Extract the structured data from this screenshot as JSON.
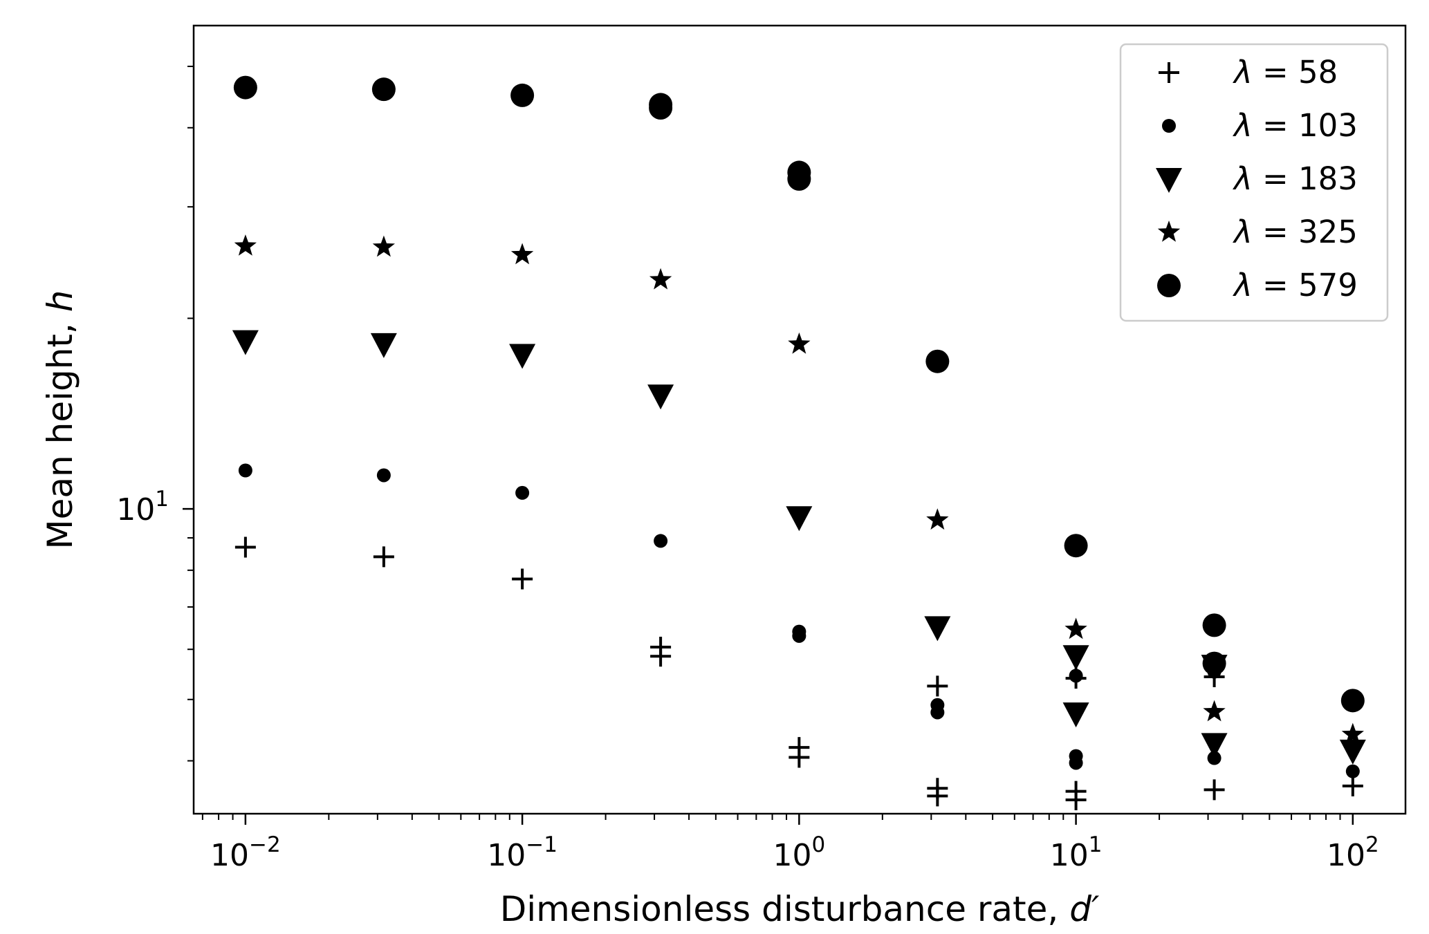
{
  "chart_data": {
    "type": "scatter",
    "xlabel": "Dimensionless disturbance rate, d′",
    "xlabel_prefix": "Dimensionless disturbance rate, ",
    "xlabel_symbol": "d′",
    "ylabel": "Mean height, h",
    "ylabel_prefix": "Mean height, ",
    "ylabel_symbol": "h",
    "x_scale": "log",
    "y_scale": "log",
    "xlim": [
      0.0065,
      155
    ],
    "ylim": [
      3.3,
      58
    ],
    "x_ticks": [
      {
        "value": 0.01,
        "base": "10",
        "exp": "−2"
      },
      {
        "value": 0.1,
        "base": "10",
        "exp": "−1"
      },
      {
        "value": 1,
        "base": "10",
        "exp": "0"
      },
      {
        "value": 10,
        "base": "10",
        "exp": "1"
      },
      {
        "value": 100,
        "base": "10",
        "exp": "2"
      }
    ],
    "y_ticks": [
      {
        "value": 10,
        "base": "10",
        "exp": "1"
      }
    ],
    "grid": false,
    "legend_position": "top-right",
    "series": [
      {
        "name": "λ = 58",
        "symbol": "λ",
        "value_label": "= 58",
        "marker": "plus",
        "points": [
          [
            0.01,
            8.7
          ],
          [
            0.0316,
            8.4
          ],
          [
            0.1,
            7.75
          ],
          [
            0.316,
            6.05
          ],
          [
            0.316,
            5.85
          ],
          [
            1,
            4.2
          ],
          [
            1,
            4.05
          ],
          [
            3.16,
            5.25
          ],
          [
            3.16,
            3.62
          ],
          [
            3.16,
            3.52
          ],
          [
            10,
            5.4
          ],
          [
            10,
            3.58
          ],
          [
            10,
            3.47
          ],
          [
            31.6,
            5.43
          ],
          [
            31.6,
            3.6
          ],
          [
            100,
            3.65
          ]
        ]
      },
      {
        "name": "λ = 103",
        "symbol": "λ",
        "value_label": "= 103",
        "marker": "dot",
        "points": [
          [
            0.01,
            11.5
          ],
          [
            0.0316,
            11.3
          ],
          [
            0.1,
            10.6
          ],
          [
            0.316,
            8.9
          ],
          [
            1,
            6.4
          ],
          [
            1,
            6.3
          ],
          [
            3.16,
            4.9
          ],
          [
            3.16,
            4.77
          ],
          [
            10,
            5.45
          ],
          [
            10,
            4.07
          ],
          [
            10,
            3.97
          ],
          [
            31.6,
            5.53
          ],
          [
            31.6,
            4.04
          ],
          [
            100,
            3.85
          ]
        ]
      },
      {
        "name": "λ = 183",
        "symbol": "λ",
        "value_label": "= 183",
        "marker": "triangle-down",
        "points": [
          [
            0.01,
            18.4
          ],
          [
            0.0316,
            18.2
          ],
          [
            0.1,
            17.5
          ],
          [
            0.316,
            15.1
          ],
          [
            1,
            9.7
          ],
          [
            3.16,
            6.5
          ],
          [
            10,
            5.85
          ],
          [
            10,
            4.75
          ],
          [
            31.6,
            5.65
          ],
          [
            31.6,
            4.25
          ],
          [
            100,
            4.15
          ]
        ]
      },
      {
        "name": "λ = 325",
        "symbol": "λ",
        "value_label": "= 325",
        "marker": "star",
        "points": [
          [
            0.01,
            26.0
          ],
          [
            0.0316,
            25.9
          ],
          [
            0.1,
            25.2
          ],
          [
            0.316,
            23.0
          ],
          [
            1,
            18.2
          ],
          [
            3.16,
            9.6
          ],
          [
            10,
            6.45
          ],
          [
            31.6,
            4.78
          ],
          [
            100,
            4.4
          ]
        ]
      },
      {
        "name": "λ = 579",
        "symbol": "λ",
        "value_label": "= 579",
        "marker": "circle",
        "points": [
          [
            0.01,
            46.3
          ],
          [
            0.0316,
            46.0
          ],
          [
            0.1,
            45.0
          ],
          [
            0.316,
            43.5
          ],
          [
            0.316,
            43.0
          ],
          [
            1,
            34.0
          ],
          [
            1,
            33.2
          ],
          [
            3.16,
            17.1
          ],
          [
            10,
            8.75
          ],
          [
            31.6,
            6.55
          ],
          [
            31.6,
            5.7
          ],
          [
            100,
            4.98
          ]
        ]
      }
    ]
  }
}
